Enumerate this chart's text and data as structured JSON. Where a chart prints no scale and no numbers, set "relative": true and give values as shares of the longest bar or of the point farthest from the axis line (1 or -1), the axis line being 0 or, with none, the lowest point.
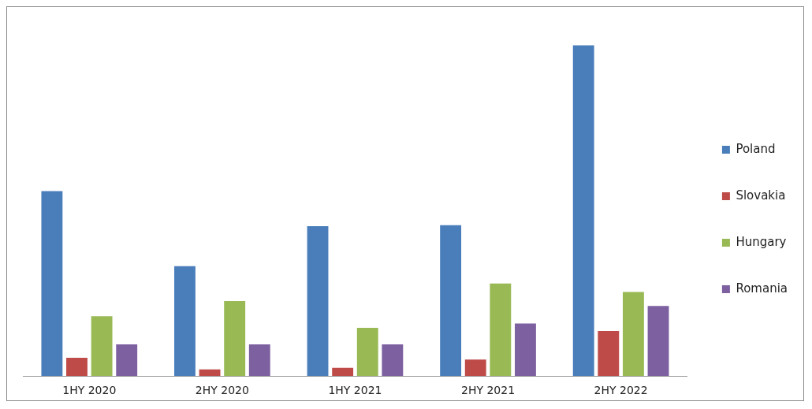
{
  "chart_data": {
    "type": "bar",
    "relative": true,
    "categories": [
      "1HY 2020",
      "2HY 2020",
      "1HY 2021",
      "2HY 2021",
      "2HY 2022"
    ],
    "series": [
      {
        "name": "Poland",
        "color": "#4a7ebb",
        "values": [
          0.559,
          0.332,
          0.453,
          0.456,
          1
        ]
      },
      {
        "name": "Slovakia",
        "color": "#be4b48",
        "values": [
          0.055,
          0.02,
          0.025,
          0.05,
          0.136
        ]
      },
      {
        "name": "Hungary",
        "color": "#98b954",
        "values": [
          0.181,
          0.227,
          0.146,
          0.28,
          0.254
        ]
      },
      {
        "name": "Romania",
        "color": "#7d60a0",
        "values": [
          0.096,
          0.096,
          0.096,
          0.159,
          0.212
        ]
      }
    ],
    "legend": "right",
    "grid": false
  }
}
